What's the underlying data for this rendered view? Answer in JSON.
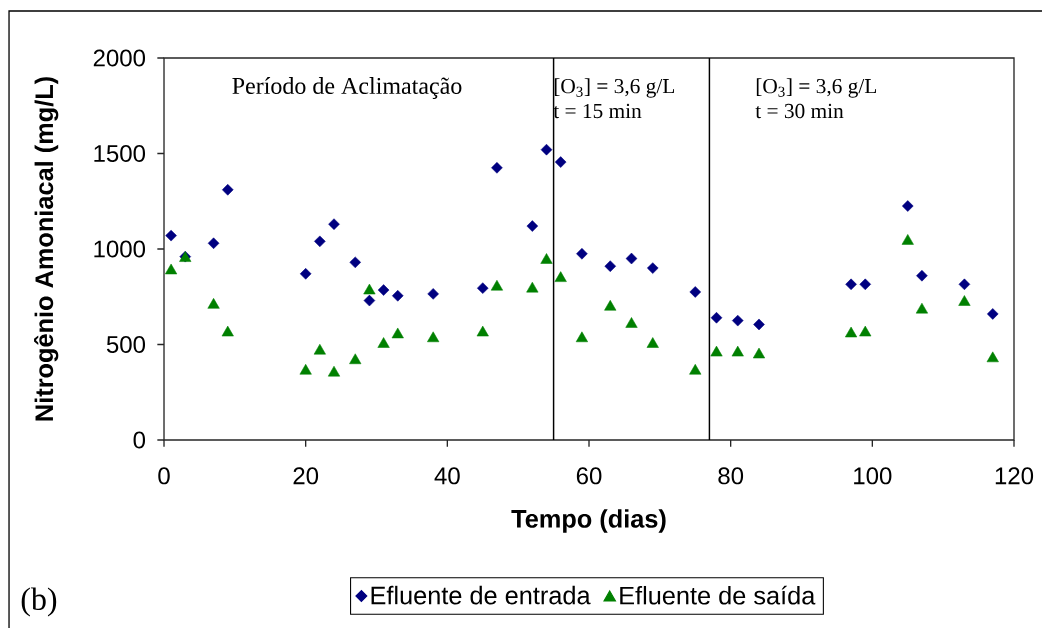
{
  "chart_data": {
    "type": "scatter",
    "xlabel": "Tempo (dias)",
    "ylabel": "Nitrogênio Amoniacal (mg/L)",
    "x": [
      1,
      3,
      7,
      9,
      20,
      22,
      24,
      27,
      29,
      31,
      33,
      38,
      45,
      47,
      52,
      54,
      56,
      59,
      63,
      66,
      69,
      75,
      78,
      81,
      84,
      97,
      99,
      105,
      107,
      113,
      117
    ],
    "series": [
      {
        "name": "Efluente de entrada",
        "color": "#000080",
        "marker": "diamond",
        "values": [
          1070,
          960,
          1030,
          1310,
          870,
          1040,
          1130,
          930,
          730,
          785,
          755,
          765,
          795,
          1425,
          1120,
          1520,
          1455,
          975,
          910,
          950,
          900,
          775,
          640,
          625,
          605,
          815,
          815,
          1225,
          860,
          815,
          660
        ]
      },
      {
        "name": "Efluente de saída",
        "color": "#008000",
        "marker": "triangle",
        "values": [
          895,
          960,
          715,
          570,
          370,
          475,
          360,
          425,
          790,
          510,
          560,
          540,
          570,
          810,
          800,
          950,
          855,
          540,
          705,
          615,
          510,
          370,
          465,
          465,
          455,
          565,
          570,
          1050,
          690,
          730,
          435
        ]
      }
    ],
    "xlim": [
      0,
      120
    ],
    "xticks": [
      0,
      20,
      40,
      60,
      80,
      100,
      120
    ],
    "ylim": [
      0,
      2000
    ],
    "yticks": [
      0,
      500,
      1000,
      1500,
      2000
    ],
    "ref_lines": [
      {
        "axis": "x",
        "value": 55,
        "color": "#000000"
      },
      {
        "axis": "x",
        "value": 77,
        "color": "#000000"
      }
    ],
    "annotations": [
      "Período de Aclimatação",
      "[O$_{3}$] = 3,6 g/L",
      "t = 15 min",
      "[O$_{3}$] = 3,6 g/L",
      "t = 30 min",
      "(b)"
    ],
    "legend": "bottom"
  }
}
